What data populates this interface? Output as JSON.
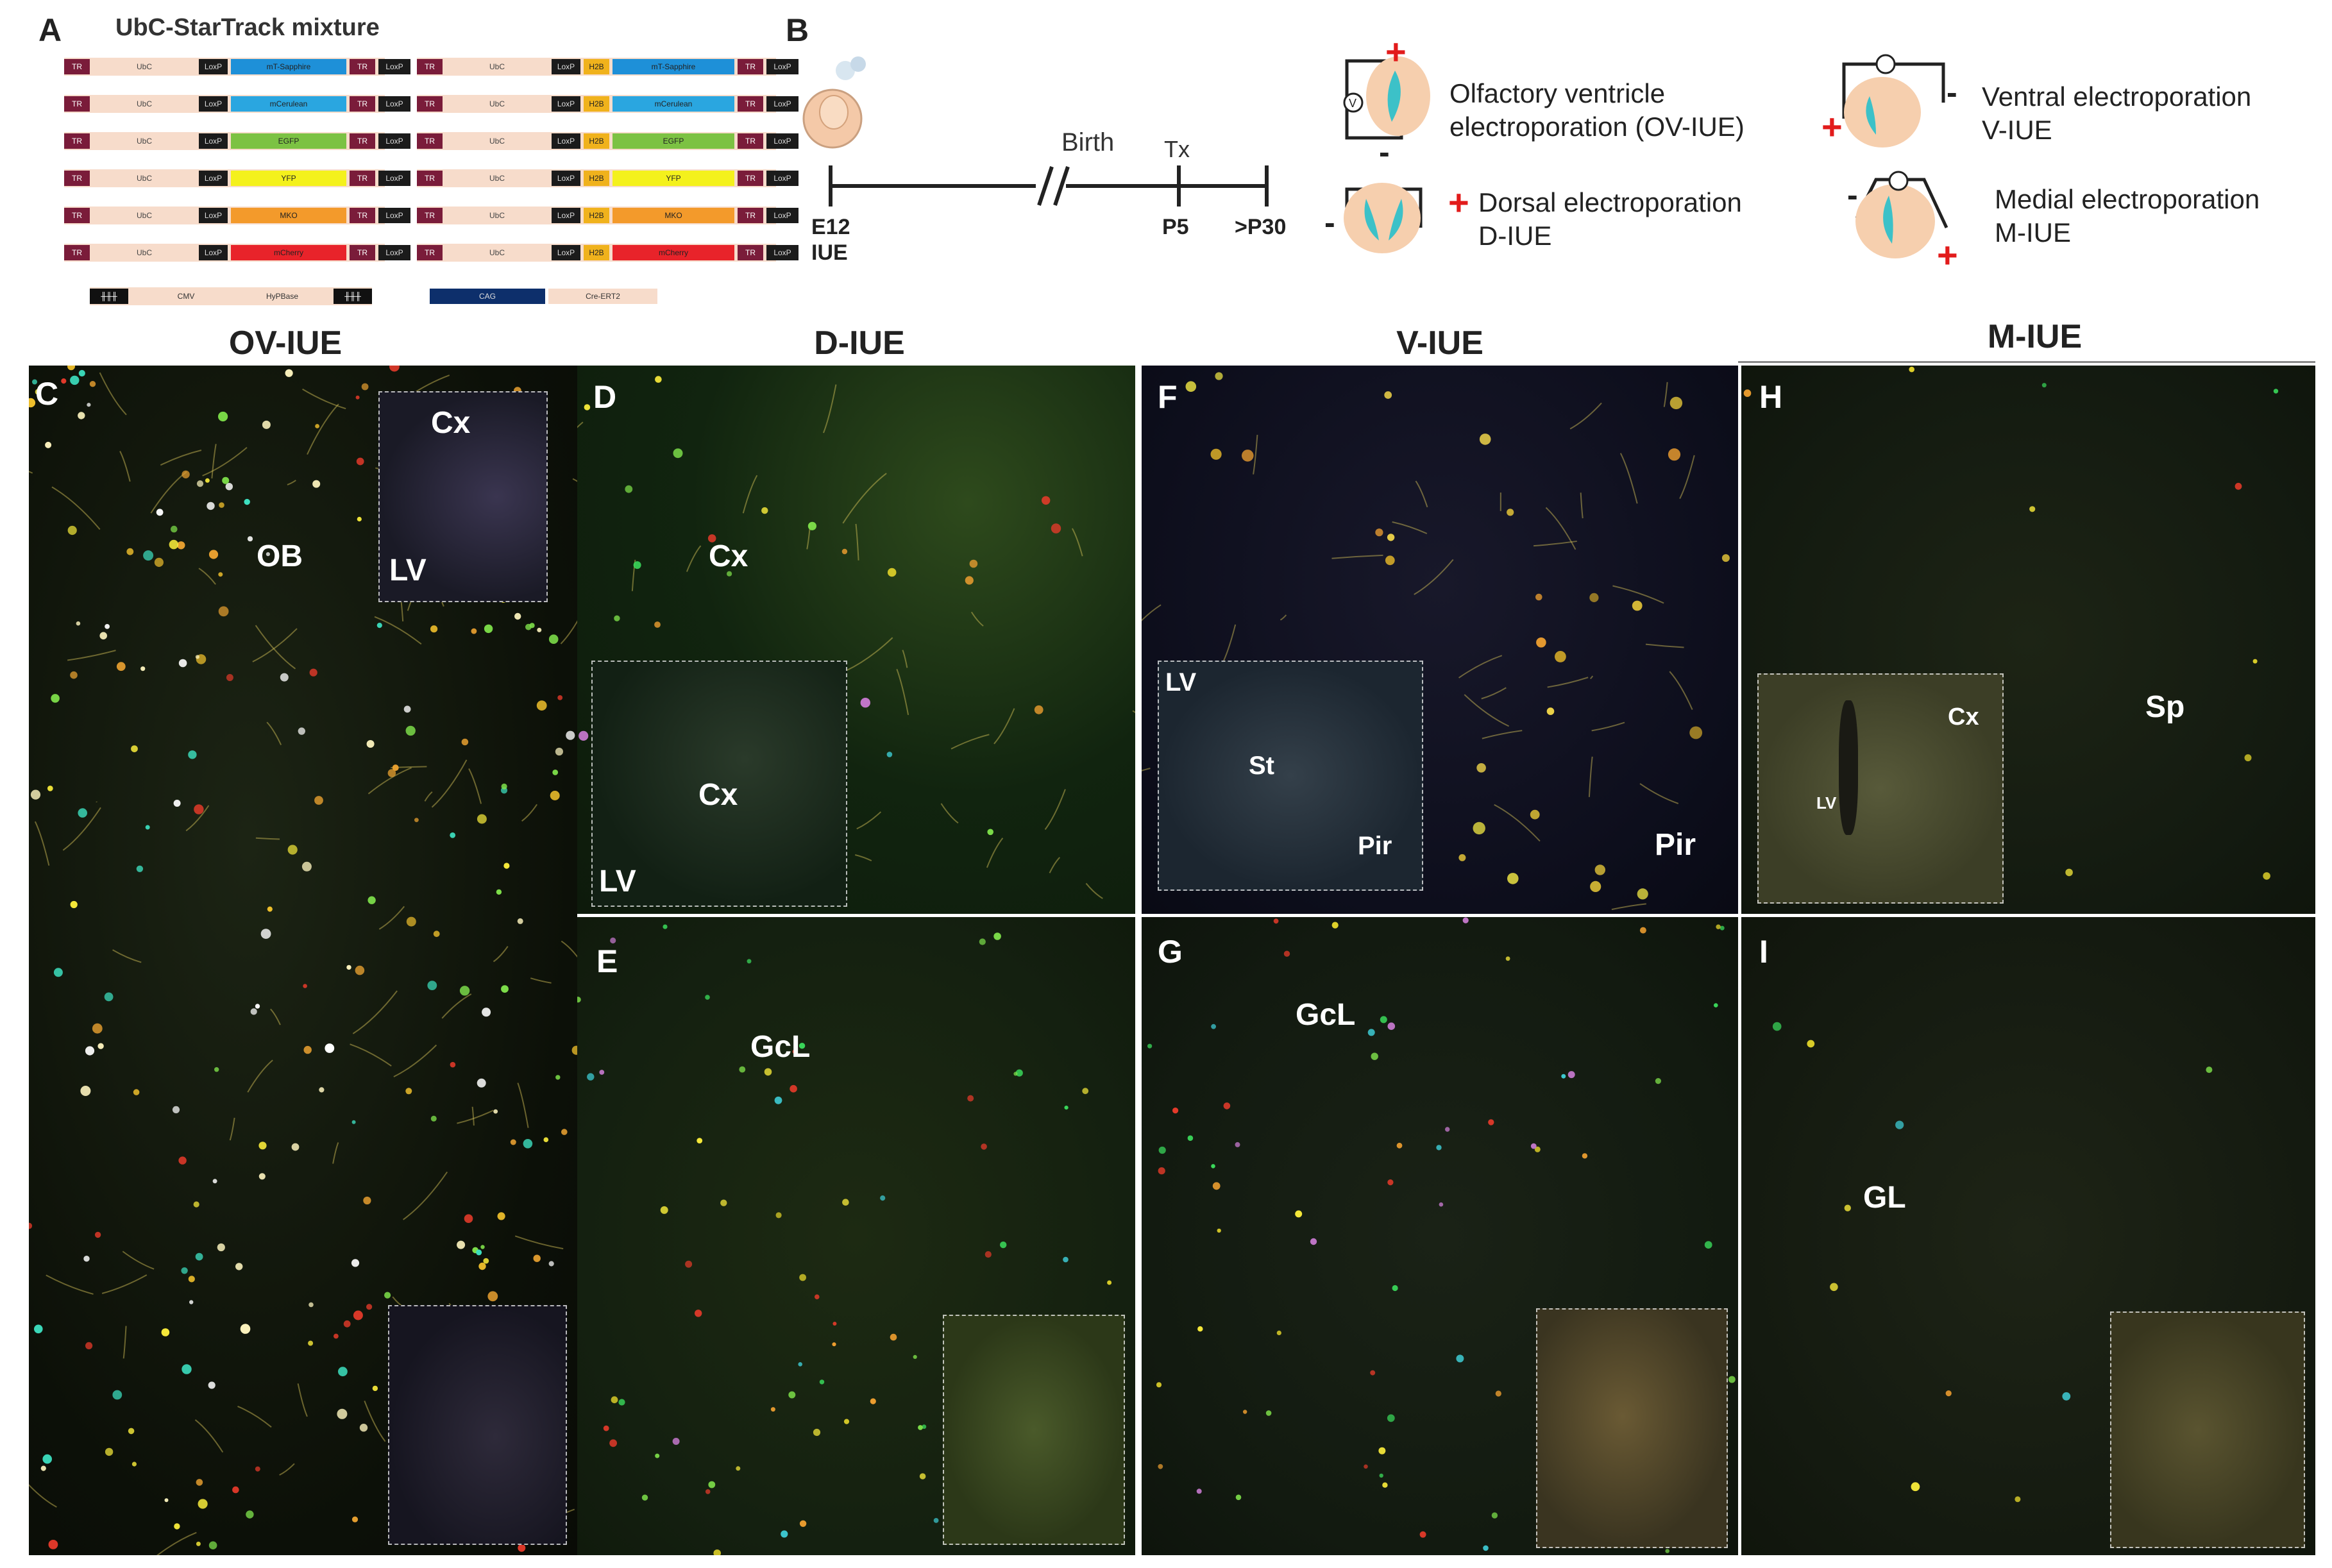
{
  "panelA": {
    "letter": "A",
    "title": "UbC-StarTrack mixture",
    "left_constructs": [
      {
        "promoter": "UbC",
        "lox": "LoxP",
        "gene": "mT-Sapphire",
        "color": "#1e90d8"
      },
      {
        "promoter": "UbC",
        "lox": "LoxP",
        "gene": "mCerulean",
        "color": "#2aa6e0"
      },
      {
        "promoter": "UbC",
        "lox": "LoxP",
        "gene": "EGFP",
        "color": "#7cc243"
      },
      {
        "promoter": "UbC",
        "lox": "LoxP",
        "gene": "YFP",
        "color": "#f4f11c"
      },
      {
        "promoter": "UbC",
        "lox": "LoxP",
        "gene": "MKO",
        "color": "#f39a2b"
      },
      {
        "promoter": "UbC",
        "lox": "LoxP",
        "gene": "mCherry",
        "color": "#e8232a"
      }
    ],
    "right_constructs": [
      {
        "promoter": "UbC",
        "lox": "LoxP",
        "tag": "H2B",
        "gene": "mT-Sapphire",
        "color": "#1e90d8"
      },
      {
        "promoter": "UbC",
        "lox": "LoxP",
        "tag": "H2B",
        "gene": "mCerulean",
        "color": "#2aa6e0"
      },
      {
        "promoter": "UbC",
        "lox": "LoxP",
        "tag": "H2B",
        "gene": "EGFP",
        "color": "#7cc243"
      },
      {
        "promoter": "UbC",
        "lox": "LoxP",
        "tag": "H2B",
        "gene": "YFP",
        "color": "#f4f11c"
      },
      {
        "promoter": "UbC",
        "lox": "LoxP",
        "tag": "H2B",
        "gene": "MKO",
        "color": "#f39a2b"
      },
      {
        "promoter": "UbC",
        "lox": "LoxP",
        "tag": "H2B",
        "gene": "mCherry",
        "color": "#e8232a"
      }
    ],
    "tr_label": "TR",
    "lox_end": "LoxP",
    "extra_left": {
      "promoter": "CMV",
      "enzyme": "HyPBase"
    },
    "extra_right": {
      "promoter": "CAG",
      "enzyme": "Cre-ERT2"
    }
  },
  "panelB": {
    "letter": "B",
    "timeline": {
      "birth": "Birth",
      "tx": "Tx",
      "e12": "E12",
      "iue": "IUE",
      "p5": "P5",
      "p30": ">P30"
    },
    "schemes": [
      {
        "line1": "Olfactory ventricle",
        "line2": "electroporation (OV-IUE)"
      },
      {
        "line1": "Dorsal electroporation",
        "line2": "D-IUE"
      },
      {
        "line1": "Ventral electroporation",
        "line2": "V-IUE"
      },
      {
        "line1": "Medial electroporation",
        "line2": "M-IUE"
      }
    ],
    "plus": "+",
    "minus": "-",
    "v": "V"
  },
  "columns": {
    "c1": "OV-IUE",
    "c2": "D-IUE",
    "c3": "V-IUE",
    "c4": "M-IUE"
  },
  "panels": {
    "C": {
      "letter": "C",
      "region1": "OB",
      "inset_a": "Cx",
      "inset_b": "LV"
    },
    "D": {
      "letter": "D",
      "region1": "Cx",
      "inset_a": "Cx",
      "inset_b": "LV"
    },
    "E": {
      "letter": "E",
      "region1": "GcL"
    },
    "F": {
      "letter": "F",
      "region1": "Pir",
      "inset_a": "LV",
      "inset_b": "St",
      "inset_c": "Pir"
    },
    "G": {
      "letter": "G",
      "region1": "GcL"
    },
    "H": {
      "letter": "H",
      "region1": "Sp",
      "inset_a": "Cx",
      "inset_b": "LV"
    },
    "I": {
      "letter": "I",
      "region1": "GL"
    }
  }
}
